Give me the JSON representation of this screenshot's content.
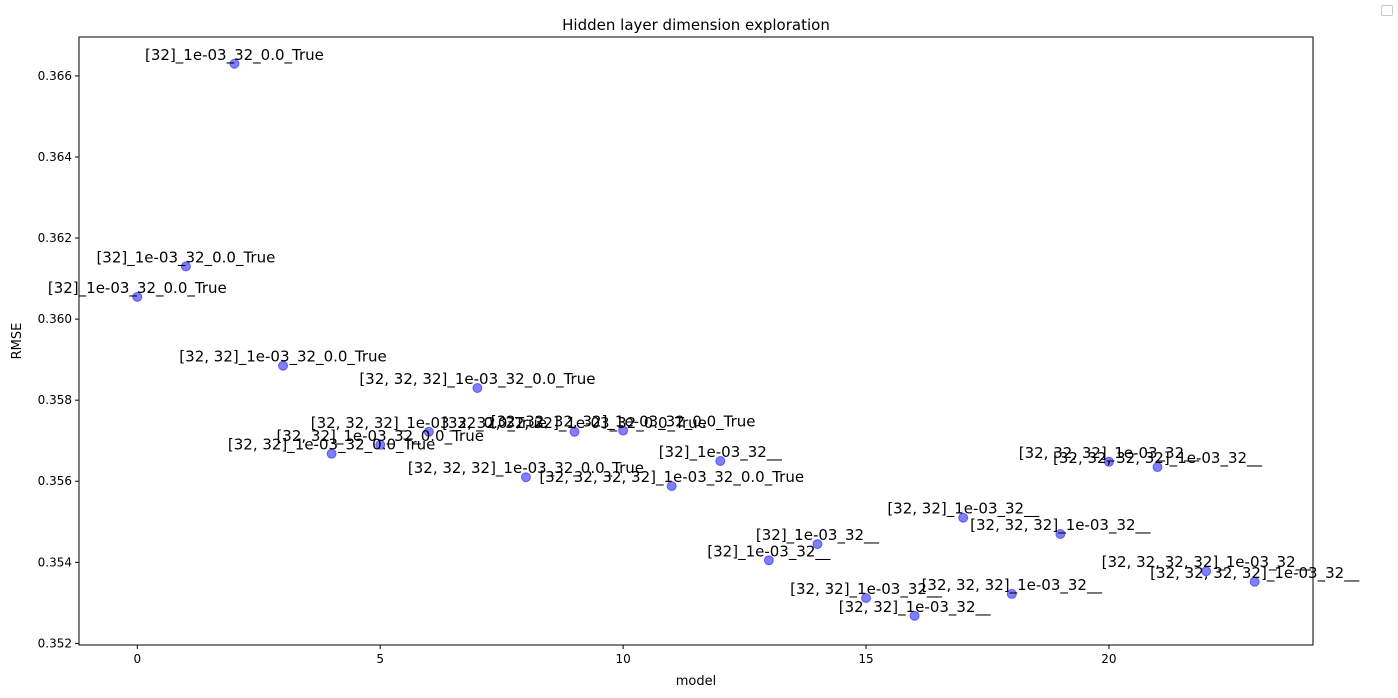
{
  "chart_data": {
    "type": "scatter",
    "title": "Hidden layer dimension exploration",
    "xlabel": "model",
    "ylabel": "RMSE",
    "xlim": [
      -1.2,
      24.2
    ],
    "ylim": [
      0.35196,
      0.36696
    ],
    "xticks": [
      0,
      5,
      10,
      15,
      20
    ],
    "yticks": [
      0.352,
      0.354,
      0.356,
      0.358,
      0.36,
      0.362,
      0.364,
      0.366
    ],
    "ytick_labels": [
      "0.352",
      "0.354",
      "0.356",
      "0.358",
      "0.360",
      "0.362",
      "0.364",
      "0.366"
    ],
    "grid": false,
    "legend": "top-right (empty)",
    "marker_color": "#0000ff",
    "marker_alpha": 0.5,
    "points": [
      {
        "x": 0,
        "y": 0.36055,
        "label": "[32]_1e-03_32_0.0_True"
      },
      {
        "x": 1,
        "y": 0.3613,
        "label": "[32]_1e-03_32_0.0_True"
      },
      {
        "x": 2,
        "y": 0.3663,
        "label": "[32]_1e-03_32_0.0_True"
      },
      {
        "x": 3,
        "y": 0.35885,
        "label": "[32, 32]_1e-03_32_0.0_True"
      },
      {
        "x": 4,
        "y": 0.35668,
        "label": "[32, 32]_1e-03_32_0.0_True"
      },
      {
        "x": 5,
        "y": 0.3569,
        "label": "[32, 32]_1e-03_32_0.0_True"
      },
      {
        "x": 6,
        "y": 0.35722,
        "label": "[32, 32, 32]_1e-03_32_0.0_True"
      },
      {
        "x": 7,
        "y": 0.3583,
        "label": "[32, 32, 32]_1e-03_32_0.0_True"
      },
      {
        "x": 8,
        "y": 0.3561,
        "label": "[32, 32, 32]_1e-03_32_0.0_True"
      },
      {
        "x": 9,
        "y": 0.35722,
        "label": "[32, 32, 32, 32]_1e-03_32_0.0_True"
      },
      {
        "x": 10,
        "y": 0.35725,
        "label": "[32, 32, 32, 32]_1e-03_32_0.0_True"
      },
      {
        "x": 11,
        "y": 0.35588,
        "label": "[32, 32, 32, 32]_1e-03_32_0.0_True"
      },
      {
        "x": 12,
        "y": 0.3565,
        "label": "[32]_1e-03_32__"
      },
      {
        "x": 13,
        "y": 0.35405,
        "label": "[32]_1e-03_32__"
      },
      {
        "x": 14,
        "y": 0.35445,
        "label": "[32]_1e-03_32__"
      },
      {
        "x": 15,
        "y": 0.35312,
        "label": "[32, 32]_1e-03_32__"
      },
      {
        "x": 16,
        "y": 0.35268,
        "label": "[32, 32]_1e-03_32__"
      },
      {
        "x": 17,
        "y": 0.3551,
        "label": "[32, 32]_1e-03_32__"
      },
      {
        "x": 18,
        "y": 0.35322,
        "label": "[32, 32, 32]_1e-03_32__"
      },
      {
        "x": 19,
        "y": 0.3547,
        "label": "[32, 32, 32]_1e-03_32__"
      },
      {
        "x": 20,
        "y": 0.35648,
        "label": "[32, 32, 32]_1e-03_32__"
      },
      {
        "x": 21,
        "y": 0.35635,
        "label": "[32, 32, 32, 32]_1e-03_32__"
      },
      {
        "x": 22,
        "y": 0.35378,
        "label": "[32, 32, 32, 32]_1e-03_32__"
      },
      {
        "x": 23,
        "y": 0.35352,
        "label": "[32, 32, 32, 32]_1e-03_32__"
      }
    ]
  }
}
